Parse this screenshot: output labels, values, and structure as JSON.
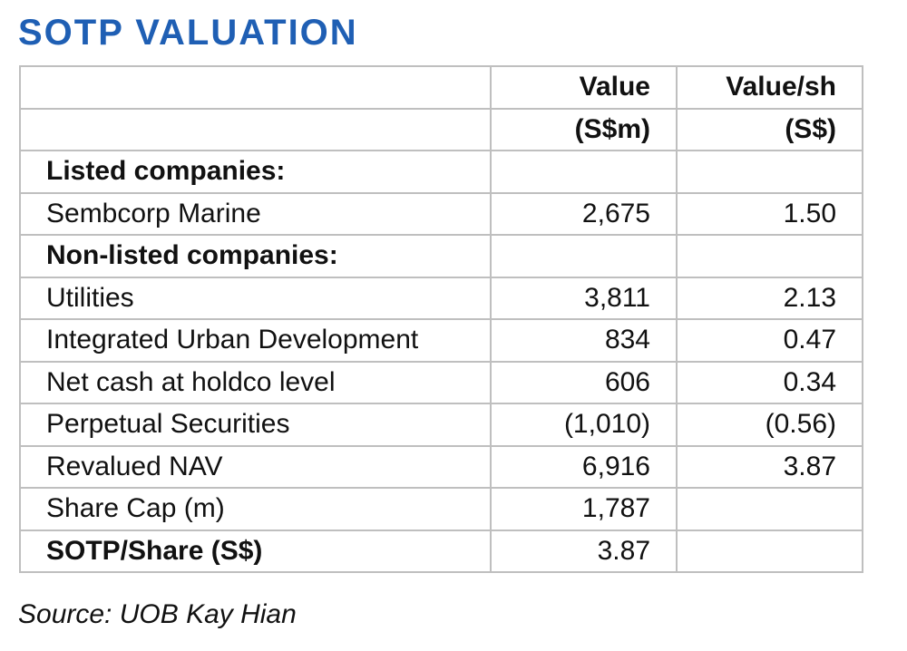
{
  "title": "SOTP VALUATION",
  "headers": {
    "value_line1": "Value",
    "value_line2": "(S$m)",
    "valuesh_line1": "Value/sh",
    "valuesh_line2": "(S$)"
  },
  "rows": [
    {
      "label": "Listed companies:",
      "value": "",
      "value_sh": ""
    },
    {
      "label": "Sembcorp Marine",
      "value": "2,675",
      "value_sh": "1.50"
    },
    {
      "label": "Non-listed companies:",
      "value": "",
      "value_sh": ""
    },
    {
      "label": "Utilities",
      "value": "3,811",
      "value_sh": "2.13"
    },
    {
      "label": "Integrated Urban Development",
      "value": "834",
      "value_sh": "0.47"
    },
    {
      "label": "Net cash at holdco level",
      "value": "606",
      "value_sh": "0.34"
    },
    {
      "label": "Perpetual Securities",
      "value": "(1,010)",
      "value_sh": "(0.56)"
    },
    {
      "label": "Revalued NAV",
      "value": "6,916",
      "value_sh": "3.87"
    },
    {
      "label": "Share Cap (m)",
      "value": "1,787",
      "value_sh": ""
    },
    {
      "label": "SOTP/Share (S$)",
      "value": "3.87",
      "value_sh": ""
    }
  ],
  "source": "Source: UOB Kay Hian"
}
